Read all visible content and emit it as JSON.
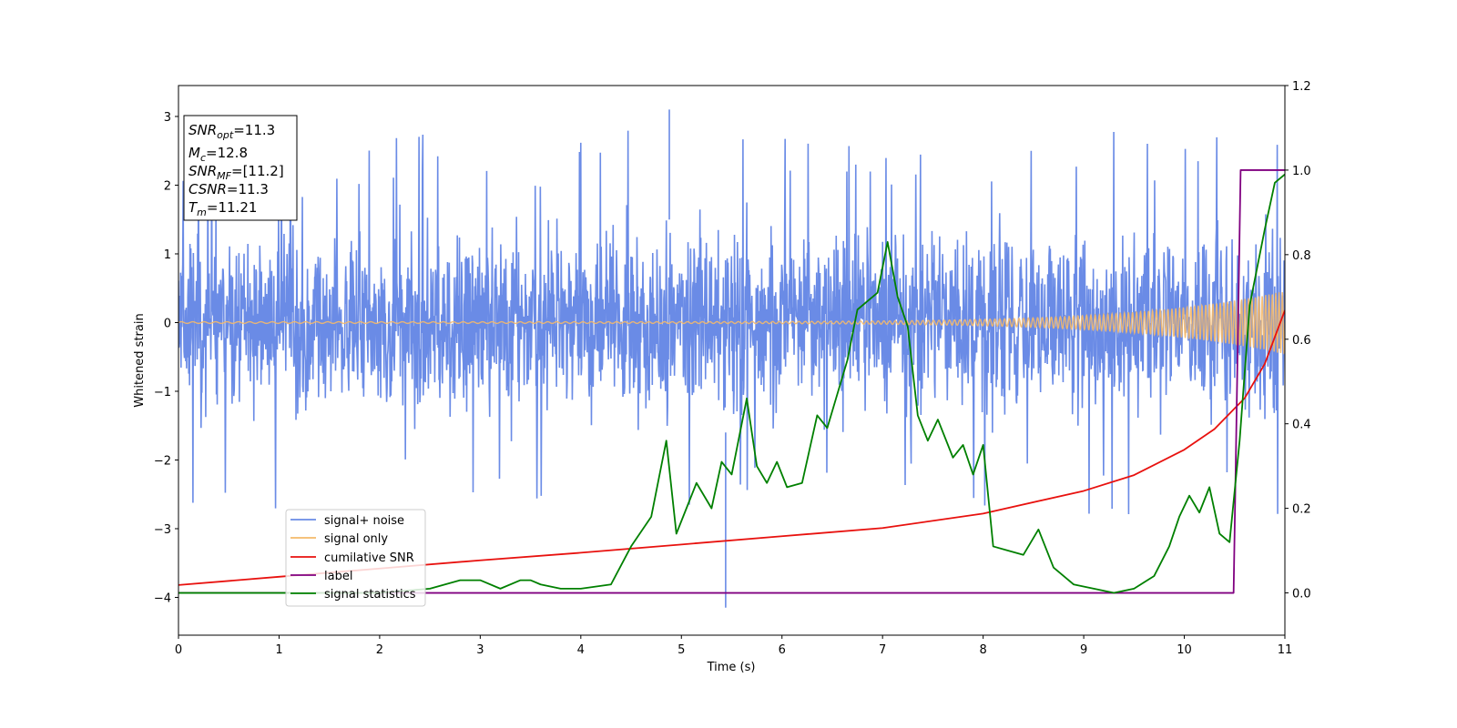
{
  "chart_data": {
    "type": "line",
    "xlabel": "Time (s)",
    "ylabel": "Whitened strain",
    "xlim": [
      0,
      11
    ],
    "ylim": [
      -4.55,
      3.45
    ],
    "y2lim": [
      -0.1,
      1.2
    ],
    "xticks": [
      "0",
      "1",
      "2",
      "3",
      "4",
      "5",
      "6",
      "7",
      "8",
      "9",
      "10",
      "11"
    ],
    "yticks": [
      "−4",
      "−3",
      "−2",
      "−1",
      "0",
      "1",
      "2",
      "3"
    ],
    "y2ticks": [
      "0.0",
      "0.2",
      "0.4",
      "0.6",
      "0.8",
      "1.0",
      "1.2"
    ],
    "grid": false,
    "legend_position": "lower-left",
    "info_box": {
      "line1": {
        "base": "SNR",
        "sub": "opt",
        "value": "=11.3"
      },
      "line2": {
        "base": "M",
        "sub": "c",
        "value": "=12.8"
      },
      "line3": {
        "base": "SNR",
        "sub": "MF",
        "value": "=[11.2]"
      },
      "line4": {
        "base": "CSNR",
        "sub": "",
        "value": "=11.3"
      },
      "line5": {
        "base": "T",
        "sub": "m",
        "value": "=11.21"
      }
    },
    "series": [
      {
        "name": "signal+ noise",
        "color": "#6a8be6",
        "axis": "left",
        "kind": "noise",
        "peak_range": [
          -4.15,
          3.1
        ]
      },
      {
        "name": "signal only",
        "color": "#f5b96a",
        "axis": "left",
        "kind": "chirp",
        "amplitude_end": 0.45,
        "cycles": 176
      },
      {
        "name": "cumilative SNR",
        "color": "#e8110e",
        "axis": "left",
        "x": [
          0,
          1,
          2,
          3,
          4,
          5,
          6,
          7,
          8,
          9,
          9.5,
          10,
          10.3,
          10.6,
          10.8,
          11
        ],
        "y": [
          -3.82,
          -3.7,
          -3.58,
          -3.46,
          -3.35,
          -3.23,
          -3.11,
          -2.99,
          -2.78,
          -2.45,
          -2.22,
          -1.85,
          -1.55,
          -1.1,
          -0.6,
          0.18
        ]
      },
      {
        "name": "label",
        "color": "#800080",
        "axis": "right",
        "x": [
          0,
          10.49,
          10.56,
          11
        ],
        "y": [
          0,
          0,
          1,
          1
        ]
      },
      {
        "name": "signal statistics",
        "color": "#008000",
        "axis": "right",
        "x": [
          0,
          1,
          2,
          2.5,
          2.8,
          3.0,
          3.2,
          3.4,
          3.5,
          3.6,
          3.8,
          4.0,
          4.3,
          4.5,
          4.7,
          4.85,
          4.95,
          5.05,
          5.15,
          5.3,
          5.4,
          5.5,
          5.65,
          5.75,
          5.85,
          5.95,
          6.05,
          6.2,
          6.35,
          6.45,
          6.55,
          6.65,
          6.75,
          6.85,
          6.95,
          7.05,
          7.15,
          7.25,
          7.35,
          7.45,
          7.55,
          7.7,
          7.8,
          7.9,
          8.0,
          8.1,
          8.25,
          8.4,
          8.55,
          8.7,
          8.9,
          9.1,
          9.3,
          9.5,
          9.7,
          9.85,
          9.95,
          10.05,
          10.15,
          10.25,
          10.35,
          10.45,
          10.55,
          10.65,
          10.8,
          10.9,
          11
        ],
        "y": [
          0,
          0,
          0,
          0.01,
          0.03,
          0.03,
          0.01,
          0.03,
          0.03,
          0.02,
          0.01,
          0.01,
          0.02,
          0.11,
          0.18,
          0.36,
          0.14,
          0.2,
          0.26,
          0.2,
          0.31,
          0.28,
          0.46,
          0.3,
          0.26,
          0.31,
          0.25,
          0.26,
          0.42,
          0.39,
          0.47,
          0.55,
          0.67,
          0.69,
          0.71,
          0.83,
          0.7,
          0.63,
          0.42,
          0.36,
          0.41,
          0.32,
          0.35,
          0.28,
          0.35,
          0.11,
          0.1,
          0.09,
          0.15,
          0.06,
          0.02,
          0.01,
          0.0,
          0.01,
          0.04,
          0.11,
          0.18,
          0.23,
          0.19,
          0.25,
          0.14,
          0.12,
          0.36,
          0.68,
          0.86,
          0.97,
          0.99
        ]
      }
    ]
  }
}
